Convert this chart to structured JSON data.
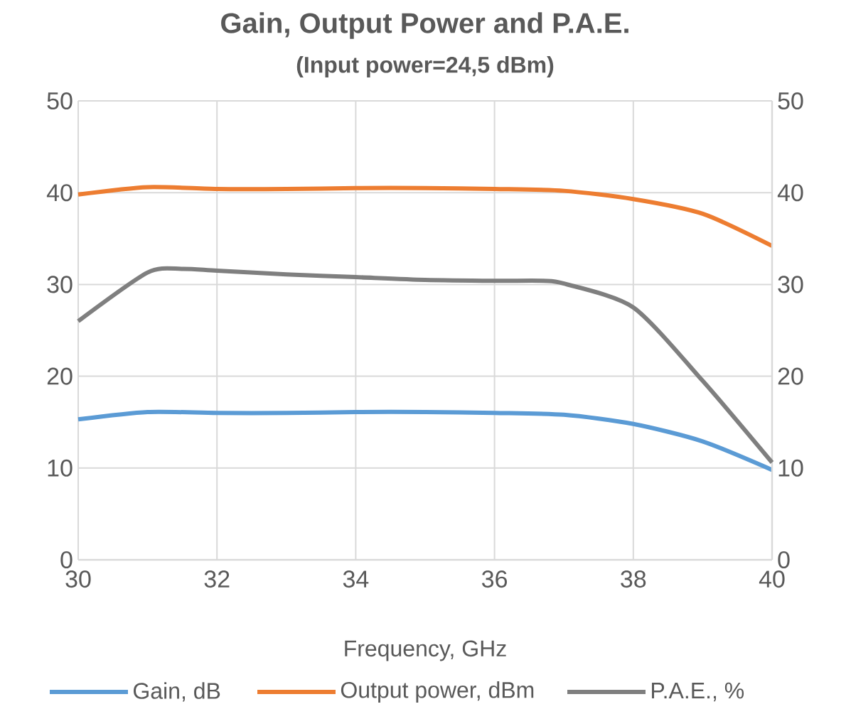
{
  "chart_data": {
    "type": "line",
    "title": "Gain, Output Power and P.A.E.",
    "subtitle": "(Input power=24,5 dBm)",
    "xlabel": "Frequency, GHz",
    "xlim": [
      30,
      40
    ],
    "xticks": [
      30,
      32,
      34,
      36,
      38,
      40
    ],
    "ylim": [
      0,
      50
    ],
    "yticks": [
      0,
      10,
      20,
      30,
      40,
      50
    ],
    "y2lim": [
      0,
      50
    ],
    "y2ticks": [
      0,
      10,
      20,
      30,
      40,
      50
    ],
    "grid": true,
    "legend": "bottom",
    "line_style": "solid",
    "series": [
      {
        "name": "Gain, dB",
        "color": "#5b9bd5",
        "x": [
          30,
          31,
          32,
          33,
          34,
          35,
          36,
          37,
          38,
          39,
          40
        ],
        "values": [
          15.3,
          16.1,
          16.0,
          16.0,
          16.1,
          16.1,
          16.0,
          15.8,
          14.8,
          12.9,
          9.8
        ]
      },
      {
        "name": "Output power, dBm",
        "color": "#ed7d31",
        "x": [
          30,
          31,
          32,
          33,
          34,
          35,
          36,
          37,
          38,
          39,
          40
        ],
        "values": [
          39.8,
          40.6,
          40.4,
          40.4,
          40.5,
          40.5,
          40.4,
          40.2,
          39.3,
          37.7,
          34.2
        ]
      },
      {
        "name": "P.A.E., %",
        "color": "#7f7f7f",
        "axis": "y2",
        "x": [
          30,
          31,
          31.5,
          32,
          33,
          34,
          35,
          36,
          36.7,
          37,
          38,
          39,
          40
        ],
        "values": [
          26.0,
          31.3,
          31.7,
          31.5,
          31.1,
          30.8,
          30.5,
          30.4,
          30.4,
          30.1,
          27.5,
          19.5,
          10.6
        ]
      }
    ]
  }
}
